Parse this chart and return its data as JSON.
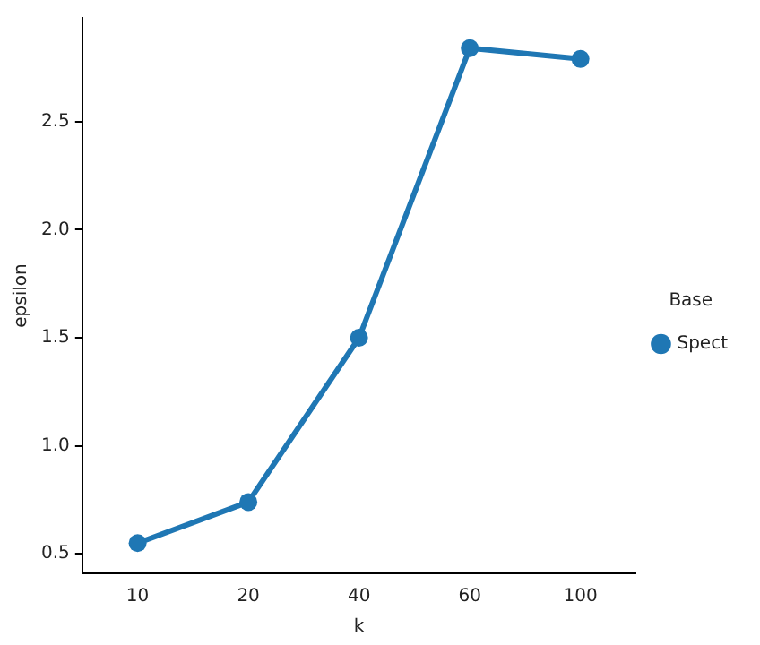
{
  "chart_data": {
    "type": "line",
    "xlabel": "k",
    "ylabel": "epsilon",
    "legend_title": "Base",
    "categories": [
      "10",
      "20",
      "40",
      "60",
      "100"
    ],
    "series": [
      {
        "name": "Spect",
        "color": "#1f77b4",
        "values": [
          0.55,
          0.74,
          1.5,
          2.84,
          2.79
        ]
      }
    ],
    "ylim": [
      0.41,
      2.98
    ],
    "yticks": [
      {
        "value": 0.5,
        "label": "0.5"
      },
      {
        "value": 1.0,
        "label": "1.0"
      },
      {
        "value": 1.5,
        "label": "1.5"
      },
      {
        "value": 2.0,
        "label": "2.0"
      },
      {
        "value": 2.5,
        "label": "2.5"
      }
    ],
    "grid": false,
    "legend": "right",
    "marker": "circle",
    "line_style": "solid"
  }
}
